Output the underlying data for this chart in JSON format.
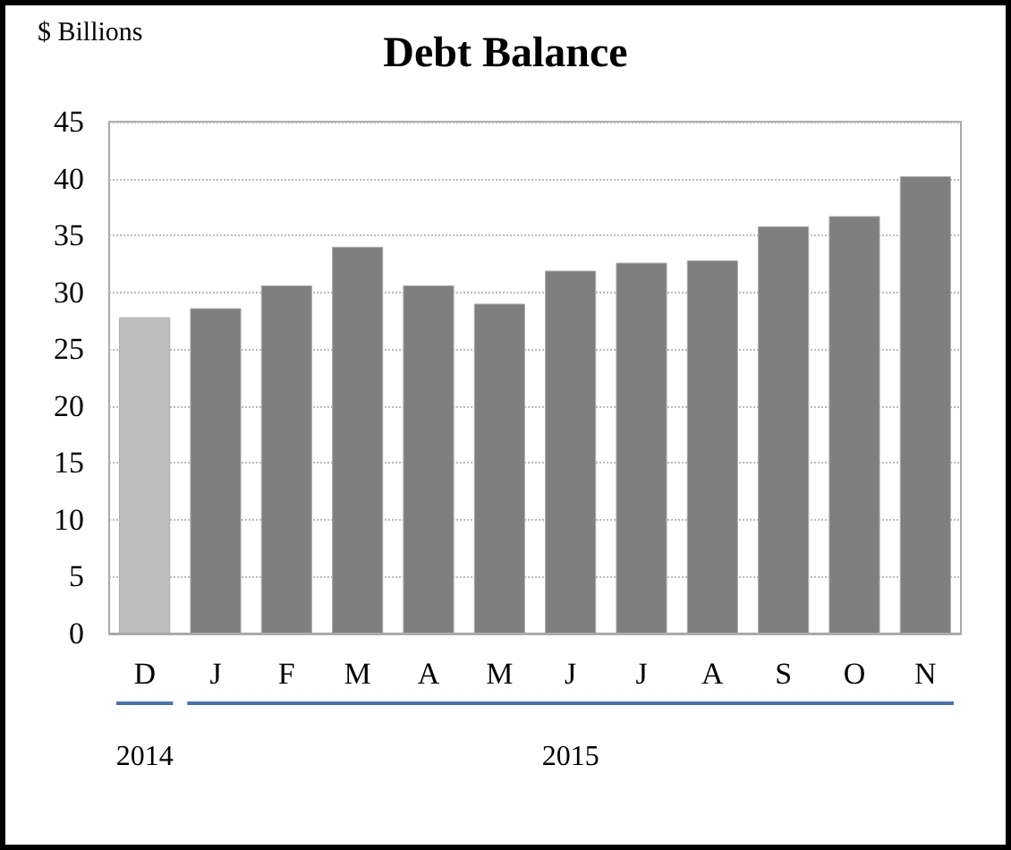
{
  "chart_data": {
    "type": "bar",
    "title": "Debt Balance",
    "ylabel": "$ Billions",
    "categories": [
      "D",
      "J",
      "F",
      "M",
      "A",
      "M",
      "J",
      "J",
      "A",
      "S",
      "O",
      "N"
    ],
    "values": [
      27.8,
      28.6,
      30.6,
      34.0,
      30.6,
      29.0,
      31.9,
      32.6,
      32.8,
      35.8,
      36.7,
      40.2
    ],
    "colors": [
      "#bdbdbd",
      "#7f7f7f",
      "#7f7f7f",
      "#7f7f7f",
      "#7f7f7f",
      "#7f7f7f",
      "#7f7f7f",
      "#7f7f7f",
      "#7f7f7f",
      "#7f7f7f",
      "#7f7f7f",
      "#7f7f7f"
    ],
    "ylim": [
      0,
      45
    ],
    "yticks": [
      0,
      5,
      10,
      15,
      20,
      25,
      30,
      35,
      40,
      45
    ],
    "grid": "y",
    "annotations": [
      "2014",
      "2015"
    ]
  }
}
